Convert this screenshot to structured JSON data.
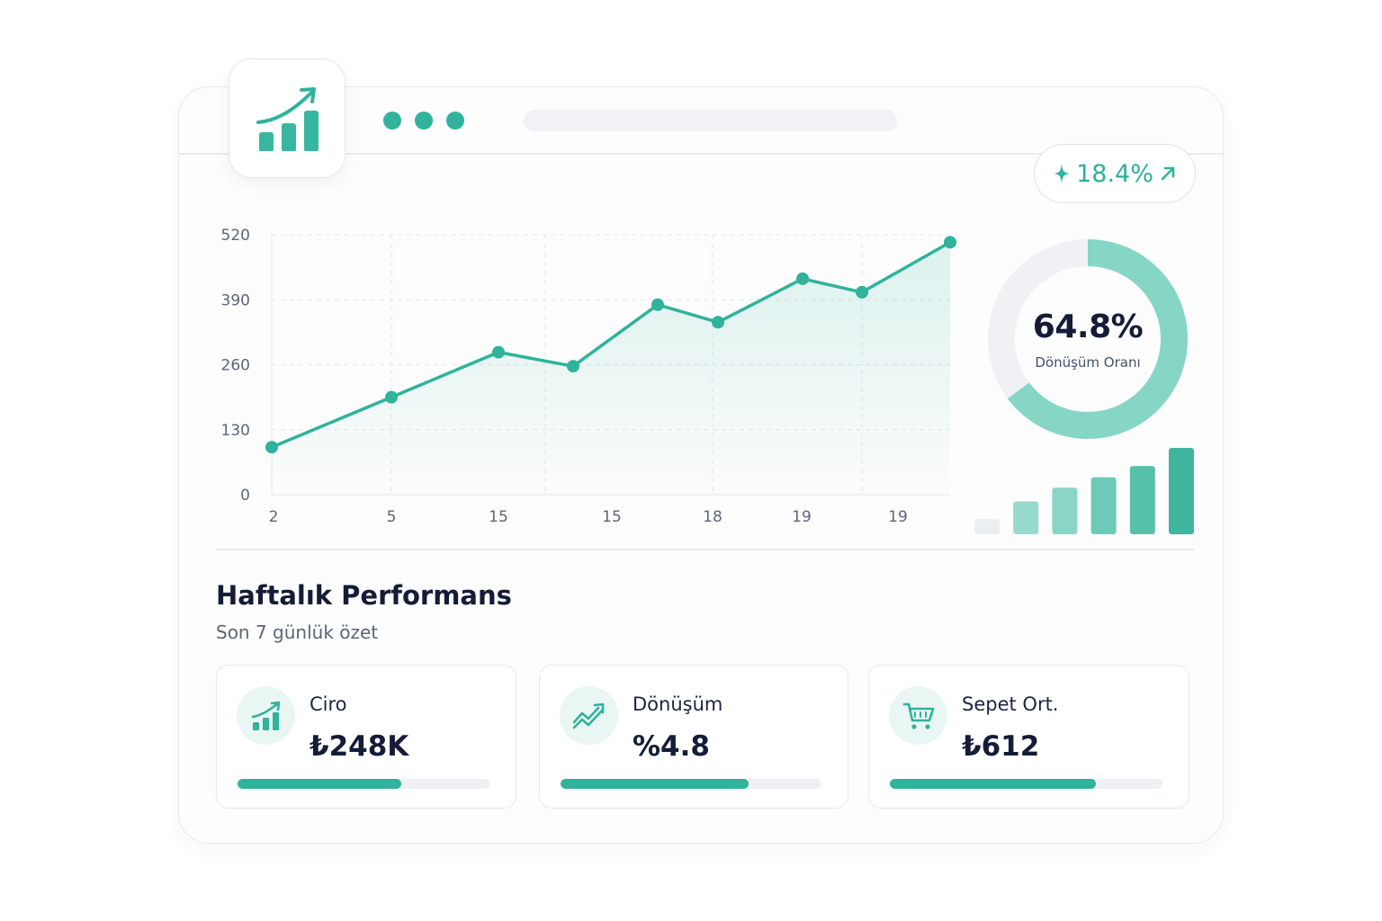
{
  "colors": {
    "accent": "#2fb39b",
    "accent_light": "#86d6c6",
    "text_dark": "#141c38",
    "text_muted": "#5b6678"
  },
  "app": {
    "logo_icon": "bar-chart-growth-icon",
    "window_dots": 3
  },
  "growth_badge": {
    "icon": "sparkle-icon",
    "value": "18.4%",
    "trend_icon": "arrow-up-right-icon"
  },
  "chart_data": [
    {
      "type": "area",
      "x_tick_labels": [
        "2",
        "5",
        "15",
        "15",
        "18",
        "19",
        "19"
      ],
      "y_ticks": [
        0,
        130,
        260,
        390,
        520
      ],
      "ylim": [
        0,
        520
      ],
      "series": [
        {
          "values": [
            95,
            195,
            285,
            257,
            380,
            345,
            432,
            405,
            505
          ]
        }
      ],
      "grid": true
    },
    {
      "type": "pie",
      "variant": "donut",
      "value_percent": 64.8,
      "center_value": "64.8%",
      "center_label": "Dönüşüm Oranı"
    },
    {
      "type": "bar",
      "values": [
        18,
        38,
        54,
        66,
        79,
        100
      ]
    }
  ],
  "section": {
    "title": "Haftalık Performans",
    "subtitle": "Son 7 günlük özet"
  },
  "kpis": [
    {
      "icon": "bar-chart-growth-icon",
      "label": "Ciro",
      "value": "₺248K",
      "progress": 0.65
    },
    {
      "icon": "trending-up-icon",
      "label": "Dönüşüm",
      "value": "%4.8",
      "progress": 0.72
    },
    {
      "icon": "shopping-cart-icon",
      "label": "Sepet Ort.",
      "value": "₺612",
      "progress": 0.755
    }
  ]
}
